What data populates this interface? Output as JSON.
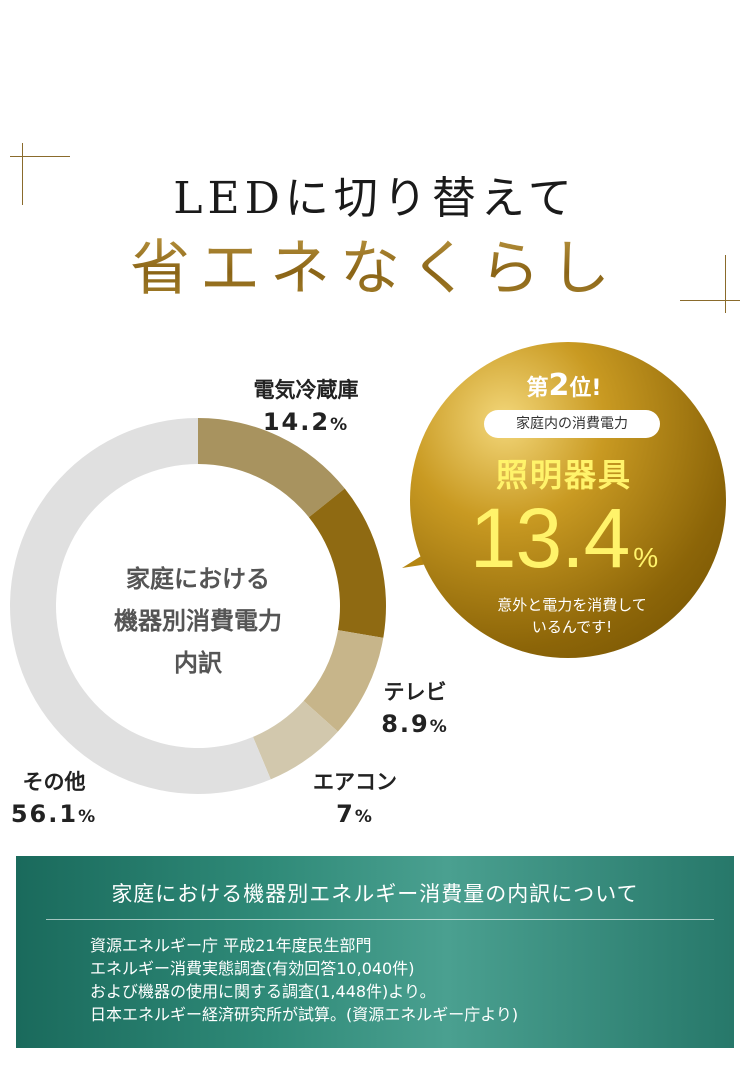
{
  "heading": {
    "line1": "LEDに切り替えて",
    "line2": "省エネなくらし"
  },
  "chart_data": {
    "type": "pie",
    "title": "家庭における機器別消費電力内訳",
    "unit": "%",
    "categories": [
      "照明器具",
      "電気冷蔵庫",
      "テレビ",
      "エアコン",
      "その他"
    ],
    "values": [
      13.4,
      14.2,
      8.9,
      7,
      56.1
    ],
    "colors": [
      "#c9ba8a",
      "#a8935f",
      "#8f6a12",
      "#c7b58a",
      "#d2c8ad",
      "#e0e0e0"
    ],
    "start_angle_deg": 0
  },
  "labels": {
    "fridge_name": "電気冷蔵庫",
    "fridge_value": "14.2",
    "tv_name": "テレビ",
    "tv_value": "8.9",
    "ac_name": "エアコン",
    "ac_value": "7",
    "other_name": "その他",
    "other_value": "56.1",
    "pct": "%"
  },
  "center": {
    "line1": "家庭における",
    "line2": "機器別消費電力",
    "line3": "内訳"
  },
  "badge": {
    "rank_prefix": "第",
    "rank_number": "2",
    "rank_suffix": "位!",
    "pill": "家庭内の消費電力",
    "name": "照明器具",
    "value": "13.4",
    "pct": "%",
    "note_line1": "意外と電力を消費して",
    "note_line2": "いるんです!",
    "color": "#c79a1c"
  },
  "info": {
    "title": "家庭における機器別エネルギー消費量の内訳について",
    "lines": [
      "資源エネルギー庁 平成21年度民生部門",
      "エネルギー消費実態調査(有効回答10,040件)",
      "および機器の使用に関する調査(1,448件)より。",
      "日本エネルギー経済研究所が試算。(資源エネルギー庁より)"
    ]
  }
}
